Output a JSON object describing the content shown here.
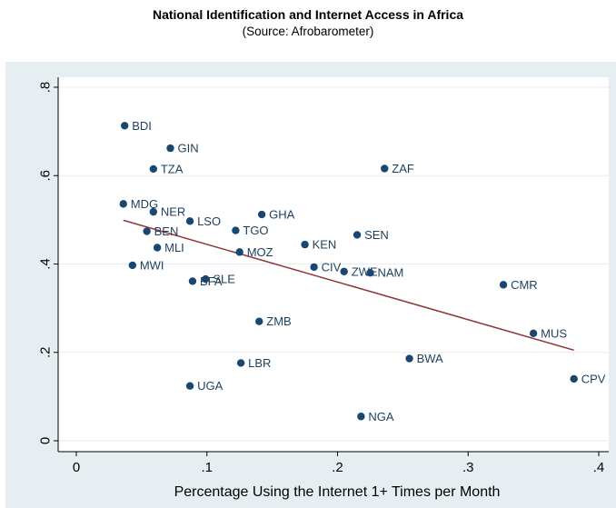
{
  "chart_data": {
    "type": "scatter",
    "title": "National Identification and Internet Access in Africa",
    "subtitle": "(Source: Afrobarometer)",
    "xlabel": "Percentage Using the Internet 1+ Times per Month",
    "ylabel": "",
    "xlim": [
      -0.01,
      0.405
    ],
    "ylim": [
      -0.02,
      0.82
    ],
    "xticks": [
      0,
      0.1,
      0.2,
      0.3,
      0.4
    ],
    "xtick_labels": [
      "0",
      ".1",
      ".2",
      ".3",
      ".4"
    ],
    "yticks": [
      0,
      0.2,
      0.4,
      0.6,
      0.8
    ],
    "ytick_labels": [
      "0",
      ".2",
      ".4",
      ".6",
      ".8"
    ],
    "grid": "horizontal",
    "point_color": "#1a476f",
    "fit_color": "#90353b",
    "fit_line": {
      "x": [
        0.036,
        0.381
      ],
      "y": [
        0.499,
        0.205
      ]
    },
    "points": [
      {
        "label": "BDI",
        "x": 0.037,
        "y": 0.713
      },
      {
        "label": "GIN",
        "x": 0.072,
        "y": 0.662
      },
      {
        "label": "TZA",
        "x": 0.059,
        "y": 0.615
      },
      {
        "label": "ZAF",
        "x": 0.236,
        "y": 0.616
      },
      {
        "label": "MDG",
        "x": 0.036,
        "y": 0.536
      },
      {
        "label": "NER",
        "x": 0.059,
        "y": 0.518
      },
      {
        "label": "LSO",
        "x": 0.087,
        "y": 0.497
      },
      {
        "label": "GHA",
        "x": 0.142,
        "y": 0.512
      },
      {
        "label": "BEN",
        "x": 0.054,
        "y": 0.474
      },
      {
        "label": "TGO",
        "x": 0.122,
        "y": 0.476
      },
      {
        "label": "SEN",
        "x": 0.215,
        "y": 0.466
      },
      {
        "label": "MLI",
        "x": 0.062,
        "y": 0.437
      },
      {
        "label": "KEN",
        "x": 0.175,
        "y": 0.444
      },
      {
        "label": "MOZ",
        "x": 0.125,
        "y": 0.427
      },
      {
        "label": "MWI",
        "x": 0.043,
        "y": 0.397
      },
      {
        "label": "CIV",
        "x": 0.182,
        "y": 0.393
      },
      {
        "label": "ZWE",
        "x": 0.205,
        "y": 0.383
      },
      {
        "label": "NAM",
        "x": 0.225,
        "y": 0.38
      },
      {
        "label": "SLE",
        "x": 0.099,
        "y": 0.366
      },
      {
        "label": "BFA",
        "x": 0.089,
        "y": 0.361
      },
      {
        "label": "CMR",
        "x": 0.327,
        "y": 0.353
      },
      {
        "label": "ZMB",
        "x": 0.14,
        "y": 0.27
      },
      {
        "label": "MUS",
        "x": 0.35,
        "y": 0.243
      },
      {
        "label": "BWA",
        "x": 0.255,
        "y": 0.186
      },
      {
        "label": "LBR",
        "x": 0.126,
        "y": 0.176
      },
      {
        "label": "CPV",
        "x": 0.381,
        "y": 0.14
      },
      {
        "label": "UGA",
        "x": 0.087,
        "y": 0.124
      },
      {
        "label": "NGA",
        "x": 0.218,
        "y": 0.055
      }
    ]
  }
}
